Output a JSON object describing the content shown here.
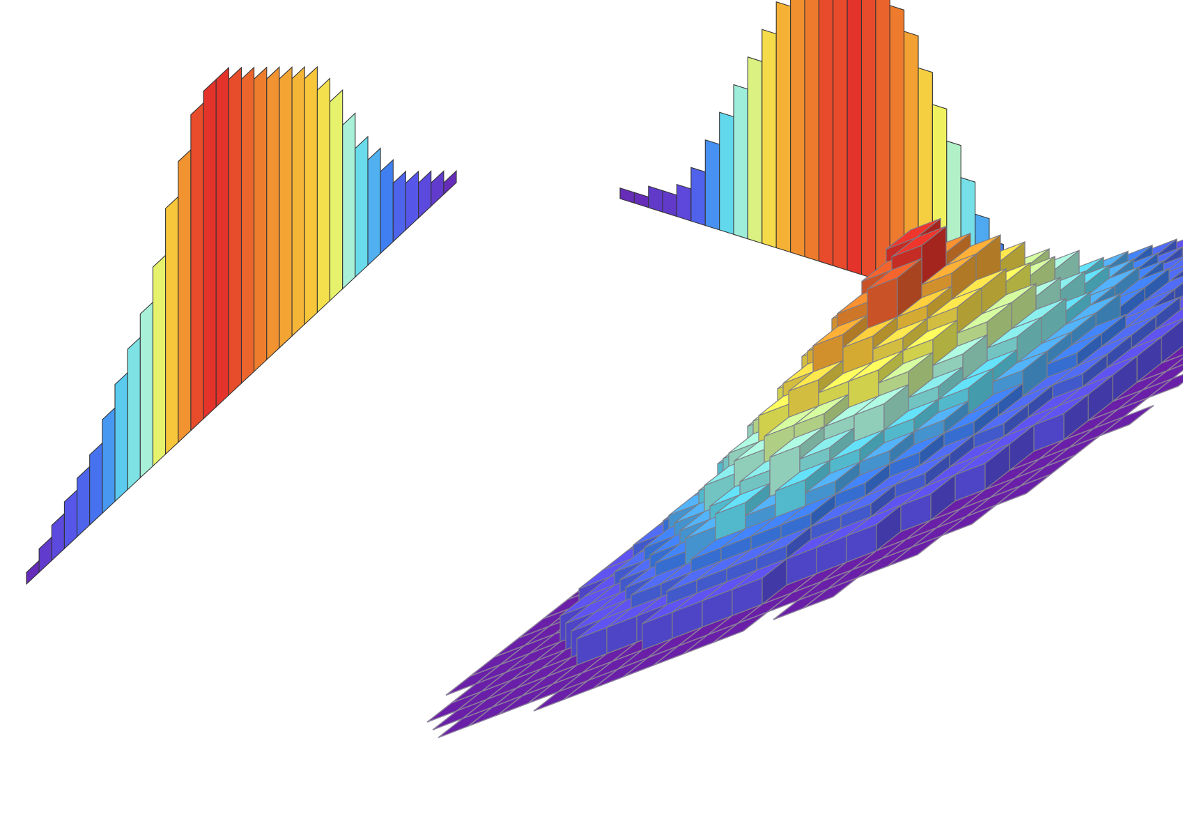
{
  "chart_data": [
    {
      "type": "bar",
      "kind": "3d-bivariate-histogram",
      "title": "",
      "xlabel": "",
      "ylabel": "",
      "zlabel": "",
      "axes_visible": false,
      "grid": false,
      "legend": "none",
      "colormap": [
        "#6a1fa8",
        "#5a50e6",
        "#3f7ff2",
        "#5fd7ee",
        "#a8f0d8",
        "#f2f25a",
        "#f7c63a",
        "#f08a2e",
        "#e4332a"
      ],
      "nx": 21,
      "ny": 22,
      "counts": [
        [
          0,
          0,
          0,
          0,
          0,
          0,
          0,
          1,
          1,
          1,
          1,
          1,
          1,
          1,
          0,
          1,
          1,
          0,
          0,
          0,
          0,
          0
        ],
        [
          0,
          0,
          0,
          1,
          1,
          1,
          1,
          1,
          1,
          1,
          1,
          1,
          1,
          1,
          1,
          1,
          1,
          1,
          1,
          0,
          0,
          0
        ],
        [
          0,
          0,
          1,
          1,
          1,
          1,
          1,
          1,
          1,
          2,
          2,
          2,
          2,
          1,
          1,
          1,
          1,
          1,
          1,
          1,
          0,
          0
        ],
        [
          0,
          1,
          1,
          1,
          1,
          1,
          2,
          2,
          2,
          3,
          3,
          3,
          3,
          2,
          2,
          2,
          1,
          1,
          1,
          1,
          1,
          0
        ],
        [
          0,
          1,
          1,
          1,
          1,
          2,
          2,
          3,
          3,
          4,
          4,
          4,
          4,
          3,
          3,
          2,
          2,
          1,
          1,
          1,
          1,
          0
        ],
        [
          1,
          1,
          1,
          1,
          2,
          2,
          3,
          4,
          5,
          6,
          5,
          6,
          5,
          4,
          3,
          3,
          2,
          2,
          1,
          1,
          1,
          0
        ],
        [
          1,
          1,
          1,
          2,
          2,
          3,
          4,
          5,
          6,
          7,
          8,
          7,
          6,
          5,
          4,
          3,
          2,
          2,
          1,
          1,
          1,
          1
        ],
        [
          1,
          1,
          1,
          2,
          3,
          4,
          5,
          7,
          8,
          9,
          9,
          8,
          8,
          6,
          5,
          4,
          3,
          2,
          2,
          1,
          1,
          0
        ],
        [
          1,
          1,
          2,
          2,
          3,
          5,
          6,
          8,
          10,
          11,
          10,
          10,
          9,
          7,
          6,
          4,
          3,
          2,
          2,
          1,
          1,
          1
        ],
        [
          1,
          1,
          2,
          3,
          4,
          5,
          7,
          9,
          11,
          13,
          12,
          11,
          10,
          8,
          6,
          5,
          3,
          3,
          2,
          1,
          1,
          0
        ],
        [
          1,
          1,
          2,
          3,
          4,
          6,
          8,
          10,
          12,
          14,
          15,
          12,
          11,
          9,
          7,
          5,
          4,
          3,
          2,
          1,
          1,
          1
        ],
        [
          1,
          1,
          2,
          3,
          4,
          6,
          8,
          11,
          13,
          15,
          16,
          13,
          11,
          9,
          7,
          5,
          4,
          3,
          2,
          1,
          1,
          0
        ],
        [
          1,
          1,
          2,
          3,
          4,
          6,
          8,
          10,
          12,
          16,
          14,
          13,
          10,
          8,
          6,
          5,
          3,
          3,
          2,
          1,
          1,
          1
        ],
        [
          1,
          1,
          2,
          2,
          3,
          5,
          7,
          9,
          11,
          12,
          12,
          11,
          9,
          7,
          5,
          4,
          3,
          2,
          2,
          1,
          1,
          0
        ],
        [
          0,
          1,
          1,
          2,
          3,
          4,
          6,
          8,
          9,
          10,
          10,
          9,
          8,
          6,
          5,
          4,
          3,
          2,
          1,
          1,
          1,
          0
        ],
        [
          0,
          1,
          1,
          2,
          2,
          3,
          5,
          6,
          7,
          8,
          8,
          7,
          6,
          5,
          4,
          3,
          2,
          2,
          1,
          1,
          0,
          0
        ],
        [
          0,
          1,
          1,
          1,
          2,
          3,
          4,
          5,
          6,
          6,
          6,
          5,
          5,
          4,
          3,
          3,
          2,
          1,
          1,
          1,
          0,
          0
        ],
        [
          0,
          0,
          1,
          1,
          2,
          2,
          3,
          4,
          4,
          5,
          4,
          4,
          4,
          3,
          2,
          2,
          2,
          1,
          1,
          0,
          0,
          0
        ],
        [
          0,
          0,
          1,
          1,
          1,
          2,
          2,
          3,
          3,
          3,
          3,
          3,
          3,
          2,
          2,
          1,
          1,
          1,
          1,
          0,
          0,
          0
        ],
        [
          0,
          0,
          0,
          1,
          1,
          1,
          2,
          2,
          2,
          2,
          2,
          2,
          2,
          1,
          1,
          1,
          1,
          1,
          0,
          0,
          0,
          0
        ],
        [
          0,
          0,
          0,
          0,
          1,
          1,
          1,
          1,
          1,
          1,
          1,
          1,
          1,
          1,
          1,
          1,
          0,
          0,
          0,
          0,
          0,
          0
        ]
      ],
      "marginal_left": {
        "type": "bar",
        "values": [
          1,
          2,
          3,
          4,
          5,
          6,
          8,
          10,
          12,
          14,
          17,
          21,
          24,
          27,
          28,
          28,
          27,
          26,
          25,
          24,
          23,
          22,
          21,
          19,
          17,
          14,
          11,
          9,
          7,
          5,
          4,
          3,
          2,
          1
        ]
      },
      "marginal_right": {
        "type": "bar",
        "values": [
          1,
          1,
          2,
          2,
          3,
          5,
          8,
          11,
          14,
          17,
          20,
          23,
          25,
          26,
          28,
          28,
          29,
          28,
          27,
          26,
          24,
          21,
          18,
          15,
          12,
          9,
          7,
          5,
          4,
          3,
          2,
          1,
          1,
          1
        ]
      }
    }
  ]
}
